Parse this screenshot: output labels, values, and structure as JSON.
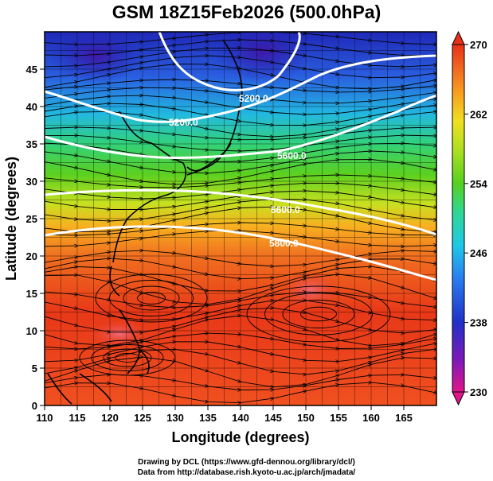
{
  "title": "GSM 18Z15Feb2026 (500.0hPa)",
  "x_axis": {
    "label": "Longitude (degrees)",
    "ticks": [
      "110",
      "115",
      "120",
      "125",
      "130",
      "135",
      "140",
      "145",
      "150",
      "155",
      "160",
      "165"
    ]
  },
  "y_axis": {
    "label": "Latitude  (degrees)",
    "ticks": [
      "0",
      "5",
      "10",
      "15",
      "20",
      "25",
      "30",
      "35",
      "40",
      "45"
    ]
  },
  "colorbar": {
    "ticks": [
      "270",
      "262",
      "254",
      "246",
      "238",
      "230"
    ],
    "colors": [
      "#e0168a",
      "#8018b8",
      "#2030c8",
      "#2a7ff0",
      "#1ec8e8",
      "#30d890",
      "#56d020",
      "#b0e020",
      "#f0e020",
      "#f8a020",
      "#f06020",
      "#e83018"
    ]
  },
  "contours": {
    "labels": [
      "5200.0",
      "5200.0",
      "5600.0",
      "5600.0",
      "5800.0"
    ]
  },
  "credits": {
    "line1": "Drawing by DCL (https://www.gfd-dennou.org/library/dcl/)",
    "line2": "Data from http://database.rish.kyoto-u.ac.jp/arch/jmadata/"
  }
}
